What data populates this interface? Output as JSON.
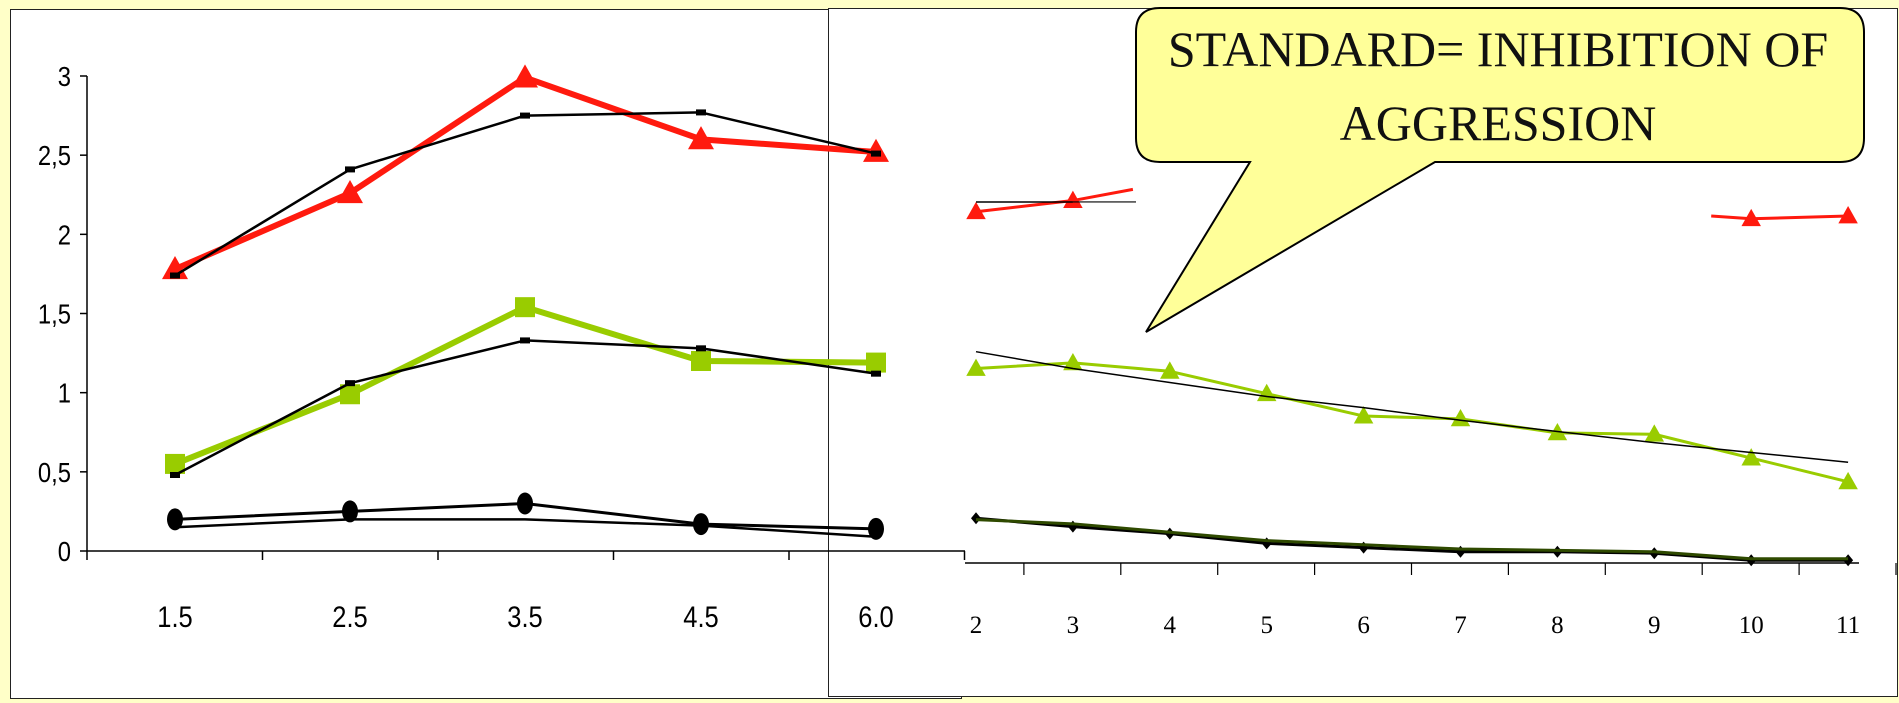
{
  "colors": {
    "red": "#ff1a0e",
    "green": "#99cc00",
    "black": "#000000",
    "callout_fill": "#ffff99"
  },
  "callout": {
    "text": "STANDARD= INHIBITION OF AGGRESSION"
  },
  "chart_data": [
    {
      "type": "line",
      "categories": [
        "1.5",
        "2.5",
        "3.5",
        "4.5",
        "6.0"
      ],
      "ylim": [
        0,
        3
      ],
      "yticks": [
        "0",
        "0,5",
        "1",
        "1,5",
        "2",
        "2,5",
        "3"
      ],
      "grid": false,
      "series": [
        {
          "values": [
            1.78,
            2.26,
            2.99,
            2.6,
            2.52
          ],
          "color": "red",
          "marker": "triangle",
          "thick": true
        },
        {
          "values": [
            1.74,
            2.41,
            2.75,
            2.77,
            2.51
          ],
          "color": "black",
          "marker": "dash",
          "thick": false
        },
        {
          "values": [
            0.55,
            0.99,
            1.54,
            1.2,
            1.19
          ],
          "color": "green",
          "marker": "square",
          "thick": true
        },
        {
          "values": [
            0.48,
            1.06,
            1.33,
            1.28,
            1.12
          ],
          "color": "black",
          "marker": "dash",
          "thick": false
        },
        {
          "values": [
            0.2,
            0.25,
            0.3,
            0.17,
            0.14
          ],
          "color": "black",
          "marker": "circle",
          "thick": true
        },
        {
          "values": [
            0.15,
            0.2,
            0.2,
            0.16,
            0.09
          ],
          "color": "black",
          "marker": "none",
          "thick": false
        }
      ]
    },
    {
      "type": "line",
      "categories": [
        "2",
        "3",
        "4",
        "5",
        "6",
        "7",
        "8",
        "9",
        "10",
        "11"
      ],
      "ylim": [
        -0.05,
        3.43
      ],
      "grid": false,
      "series": [
        {
          "values": [
            2.46,
            2.54,
            null,
            null,
            null,
            null,
            null,
            null,
            2.41,
            2.43
          ],
          "color": "red",
          "marker": "triangle",
          "thick": false
        },
        {
          "values": [
            2.53,
            2.53
          ],
          "x": [
            "2",
            "3"
          ],
          "color": "black",
          "marker": "none",
          "thick": false,
          "thin": true
        },
        {
          "values": [
            1.34,
            1.38,
            1.32,
            1.16,
            1.0,
            0.98,
            0.88,
            0.87,
            0.7,
            0.53
          ],
          "color": "green",
          "marker": "triangle",
          "thick": false
        },
        {
          "values": [
            1.46,
            1.34,
            1.24,
            1.14,
            1.06,
            0.97,
            0.89,
            0.81,
            0.74,
            0.67
          ],
          "color": "black",
          "marker": "none",
          "thick": false,
          "thin": true
        },
        {
          "values": [
            0.27,
            0.21,
            0.16,
            0.09,
            0.06,
            0.03,
            0.03,
            0.02,
            -0.03,
            -0.03
          ],
          "color": "black",
          "marker": "diamond",
          "thick": false
        },
        {
          "values": [
            0.26,
            0.23,
            0.17,
            0.11,
            0.08,
            0.05,
            0.04,
            0.03,
            -0.02,
            -0.02
          ],
          "color": "darkgreen",
          "marker": "none",
          "thick": false
        }
      ]
    }
  ]
}
